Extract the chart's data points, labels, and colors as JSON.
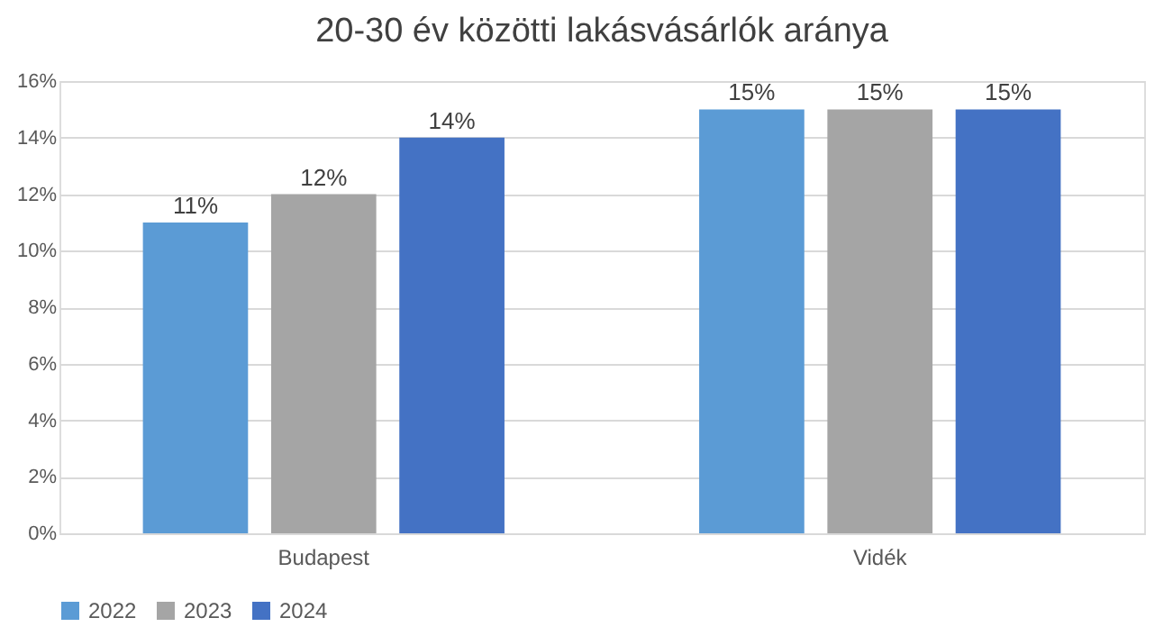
{
  "chart_data": {
    "type": "bar",
    "title": "20-30 év közötti lakásvásárlók aránya",
    "categories": [
      "Budapest",
      "Vidék"
    ],
    "series": [
      {
        "name": "2022",
        "color": "#5b9bd5",
        "values": [
          11,
          15
        ],
        "value_labels": [
          "11%",
          "15%"
        ]
      },
      {
        "name": "2023",
        "color": "#a5a5a5",
        "values": [
          12,
          15
        ],
        "value_labels": [
          "12%",
          "15%"
        ]
      },
      {
        "name": "2024",
        "color": "#4472c4",
        "values": [
          14,
          15
        ],
        "value_labels": [
          "14%",
          "15%"
        ]
      }
    ],
    "ylim": [
      0,
      16
    ],
    "yticks": [
      {
        "value": 0,
        "label": "0%"
      },
      {
        "value": 2,
        "label": "2%"
      },
      {
        "value": 4,
        "label": "4%"
      },
      {
        "value": 6,
        "label": "6%"
      },
      {
        "value": 8,
        "label": "8%"
      },
      {
        "value": 10,
        "label": "10%"
      },
      {
        "value": 12,
        "label": "12%"
      },
      {
        "value": 14,
        "label": "14%"
      },
      {
        "value": 16,
        "label": "16%"
      }
    ],
    "grid": "y",
    "legend": "bottom"
  }
}
